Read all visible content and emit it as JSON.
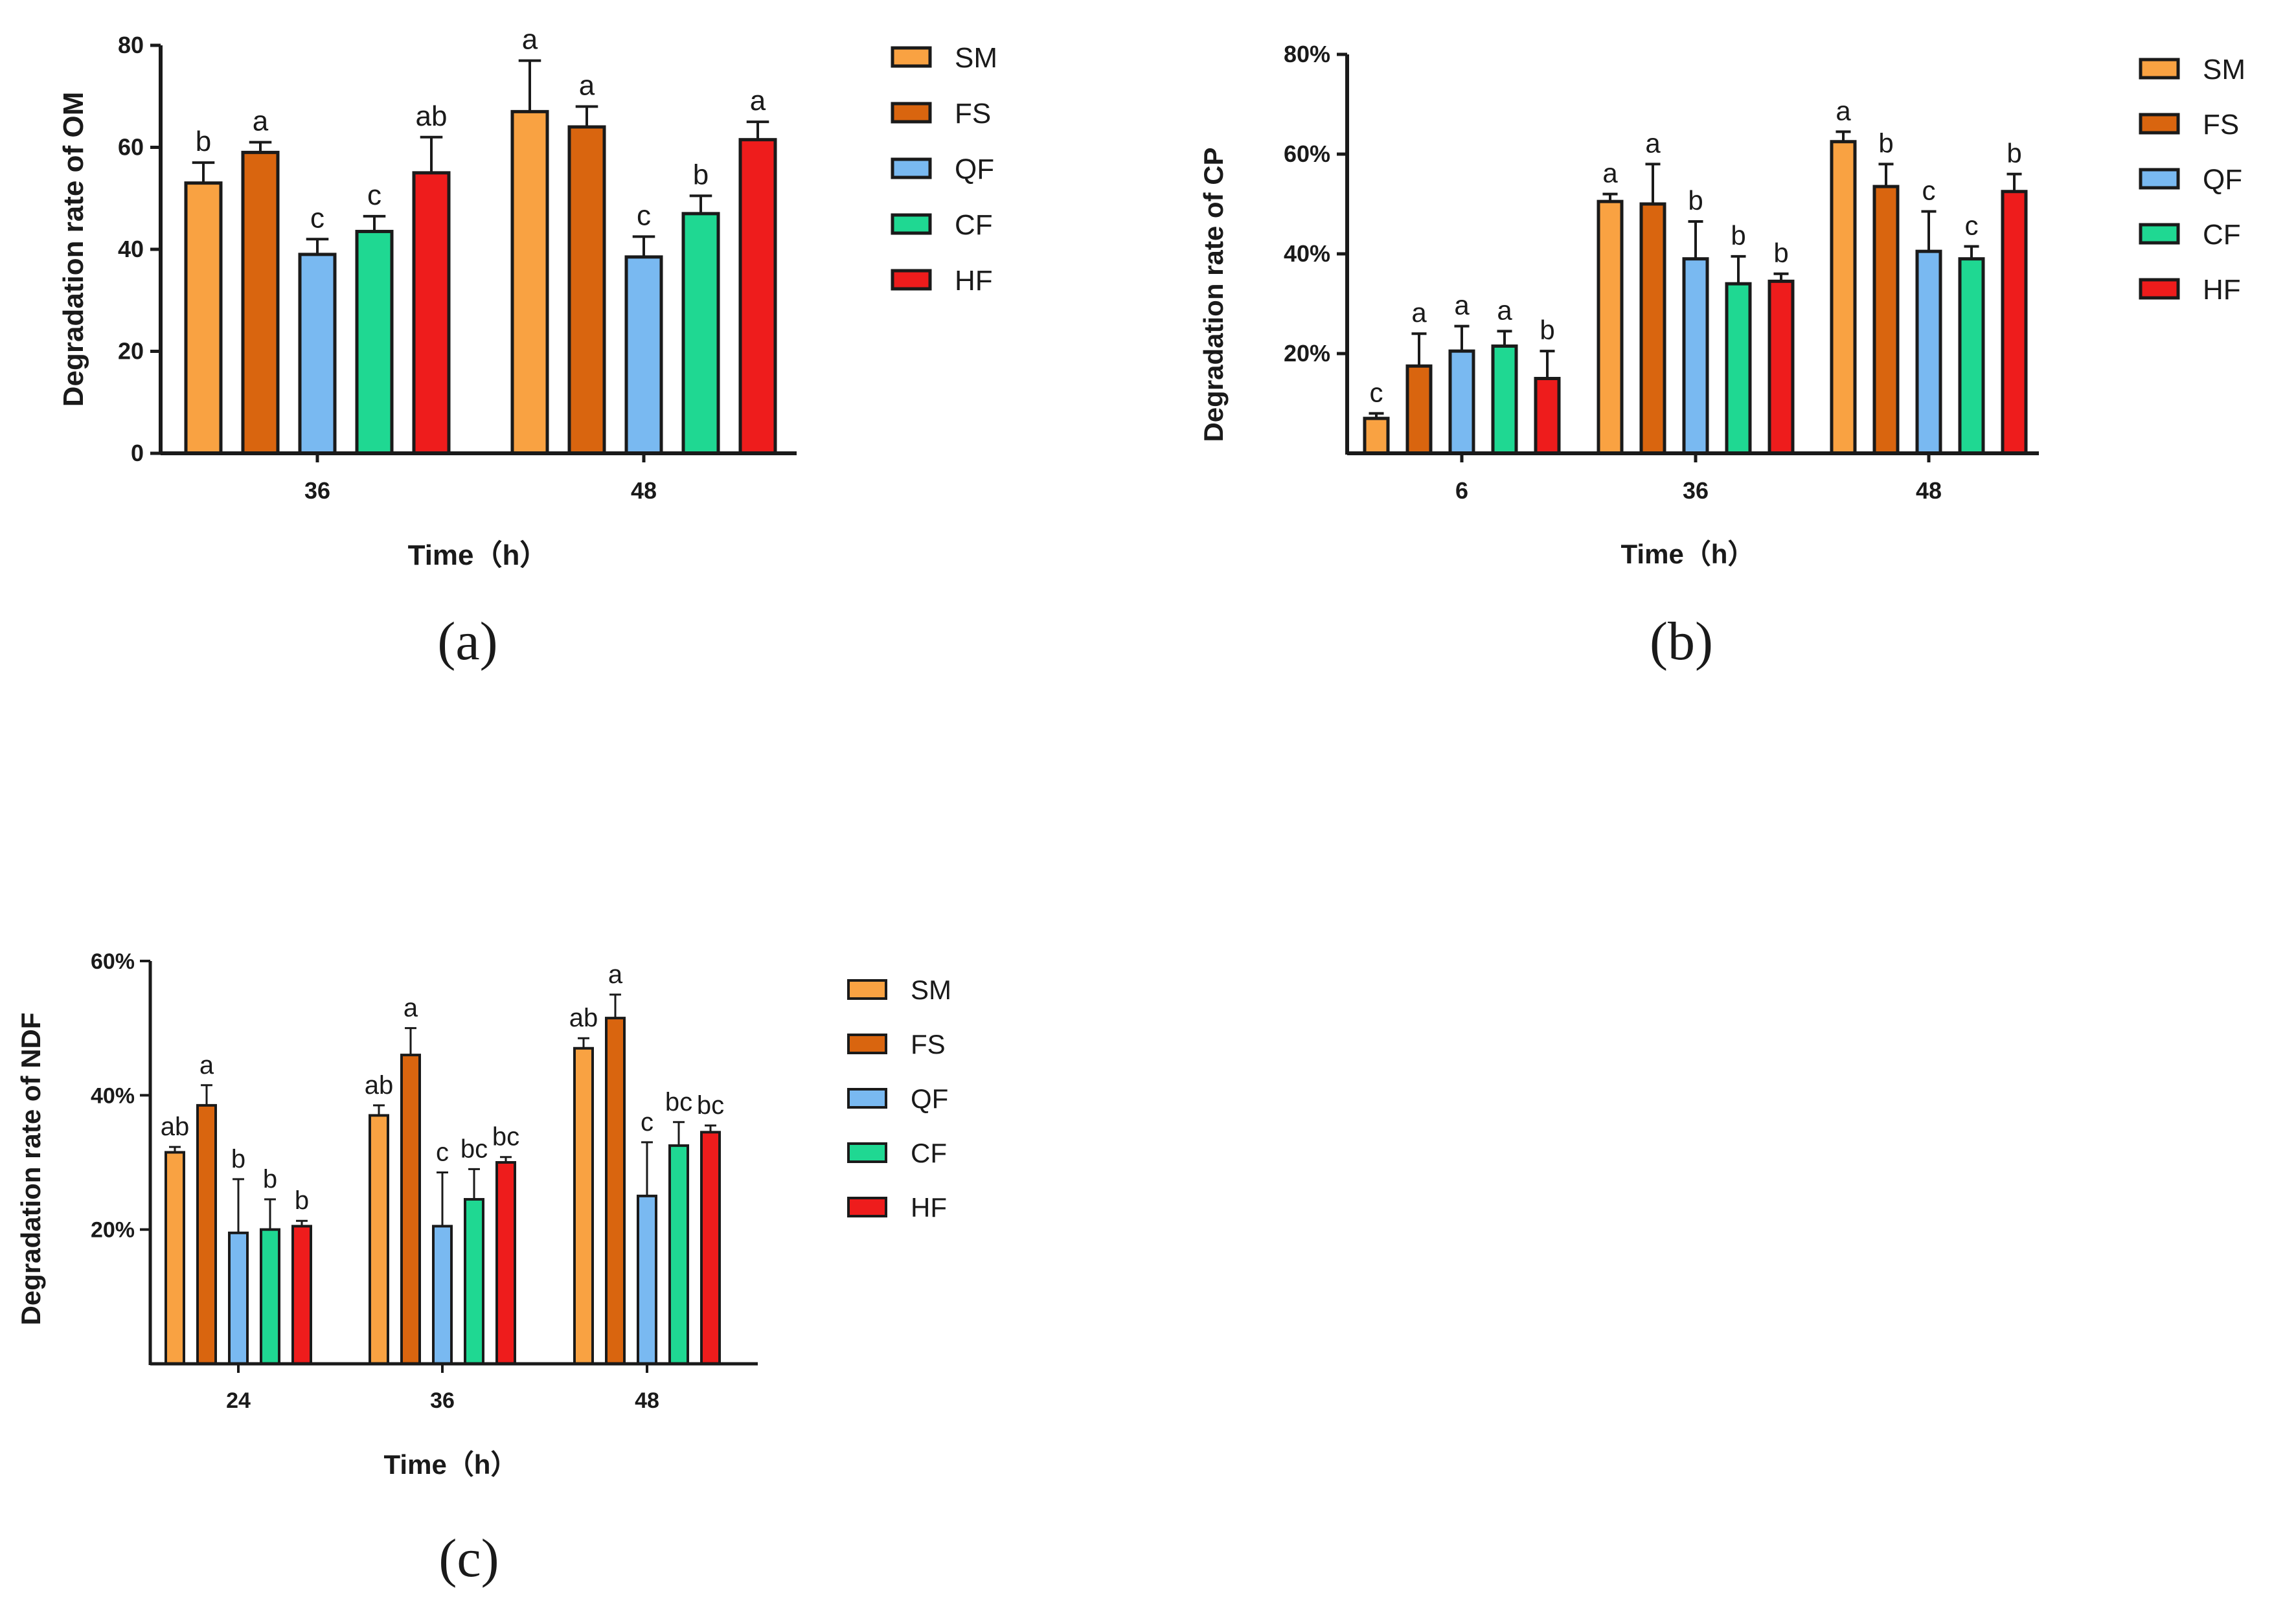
{
  "colors": {
    "SM": "#f9a242",
    "FS": "#d9650f",
    "QF": "#79b9f1",
    "CF": "#1fd892",
    "HF": "#ee1c1c",
    "axis": "#1a1a1a"
  },
  "chart_data": [
    {
      "id": "a",
      "type": "bar",
      "panel_label": "(a)",
      "xlabel": "Time（h）",
      "ylabel": "Degradation rate of OM",
      "ylim": [
        0,
        80
      ],
      "yticks": [
        0,
        20,
        40,
        60,
        80
      ],
      "ytick_labels": [
        "0",
        "20",
        "40",
        "60",
        "80"
      ],
      "legend_position": "right",
      "categories": [
        "36",
        "48"
      ],
      "series": [
        {
          "name": "SM",
          "values": [
            53,
            67
          ],
          "errors": [
            4,
            10
          ],
          "letters": [
            "b",
            "a"
          ]
        },
        {
          "name": "FS",
          "values": [
            59,
            64
          ],
          "errors": [
            2,
            4
          ],
          "letters": [
            "a",
            "a"
          ]
        },
        {
          "name": "QF",
          "values": [
            39,
            38.5
          ],
          "errors": [
            3,
            4
          ],
          "letters": [
            "c",
            "c"
          ]
        },
        {
          "name": "CF",
          "values": [
            43.5,
            47
          ],
          "errors": [
            3,
            3.5
          ],
          "letters": [
            "c",
            "b"
          ]
        },
        {
          "name": "HF",
          "values": [
            55,
            61.5
          ],
          "errors": [
            7,
            3.5
          ],
          "letters": [
            "ab",
            "a"
          ]
        }
      ]
    },
    {
      "id": "b",
      "type": "bar",
      "panel_label": "(b)",
      "xlabel": "Time（h）",
      "ylabel": "Degradation rate of CP",
      "ylim": [
        0,
        80
      ],
      "yticks": [
        20,
        40,
        60,
        80
      ],
      "ytick_labels": [
        "20%",
        "40%",
        "60%",
        "80%"
      ],
      "legend_position": "right",
      "categories": [
        "6",
        "36",
        "48"
      ],
      "series": [
        {
          "name": "SM",
          "values": [
            7,
            50.5,
            62.5
          ],
          "errors": [
            1,
            1.5,
            2
          ],
          "letters": [
            "c",
            "a",
            "a"
          ]
        },
        {
          "name": "FS",
          "values": [
            17.5,
            50,
            53.5
          ],
          "errors": [
            6.5,
            8,
            4.5
          ],
          "letters": [
            "a",
            "a",
            "b"
          ]
        },
        {
          "name": "QF",
          "values": [
            20.5,
            39,
            40.5
          ],
          "errors": [
            5,
            7.5,
            8
          ],
          "letters": [
            "a",
            "b",
            "c"
          ]
        },
        {
          "name": "CF",
          "values": [
            21.5,
            34,
            39
          ],
          "errors": [
            3,
            5.5,
            2.5
          ],
          "letters": [
            "a",
            "b",
            "c"
          ]
        },
        {
          "name": "HF",
          "values": [
            15,
            34.5,
            52.5
          ],
          "errors": [
            5.5,
            1.5,
            3.5
          ],
          "letters": [
            "b",
            "b",
            "b"
          ]
        }
      ]
    },
    {
      "id": "c",
      "type": "bar",
      "panel_label": "(c)",
      "xlabel": "Time（h）",
      "ylabel": "Degradation rate of NDF",
      "ylim": [
        0,
        60
      ],
      "yticks": [
        20,
        40,
        60
      ],
      "ytick_labels": [
        "20%",
        "40%",
        "60%"
      ],
      "legend_position": "right",
      "categories": [
        "24",
        "36",
        "48"
      ],
      "series": [
        {
          "name": "SM",
          "values": [
            31.5,
            37,
            47
          ],
          "errors": [
            0.8,
            1.5,
            1.5
          ],
          "letters": [
            "ab",
            "ab",
            "ab"
          ]
        },
        {
          "name": "FS",
          "values": [
            38.5,
            46,
            51.5
          ],
          "errors": [
            3,
            4,
            3.5
          ],
          "letters": [
            "a",
            "a",
            "a"
          ]
        },
        {
          "name": "QF",
          "values": [
            19.5,
            20.5,
            25
          ],
          "errors": [
            8,
            8,
            8
          ],
          "letters": [
            "b",
            "c",
            "c"
          ]
        },
        {
          "name": "CF",
          "values": [
            20,
            24.5,
            32.5
          ],
          "errors": [
            4.5,
            4.5,
            3.5
          ],
          "letters": [
            "b",
            "bc",
            "bc"
          ]
        },
        {
          "name": "HF",
          "values": [
            20.5,
            30,
            34.5
          ],
          "errors": [
            0.8,
            0.8,
            1
          ],
          "letters": [
            "b",
            "bc",
            "bc"
          ]
        }
      ]
    }
  ]
}
